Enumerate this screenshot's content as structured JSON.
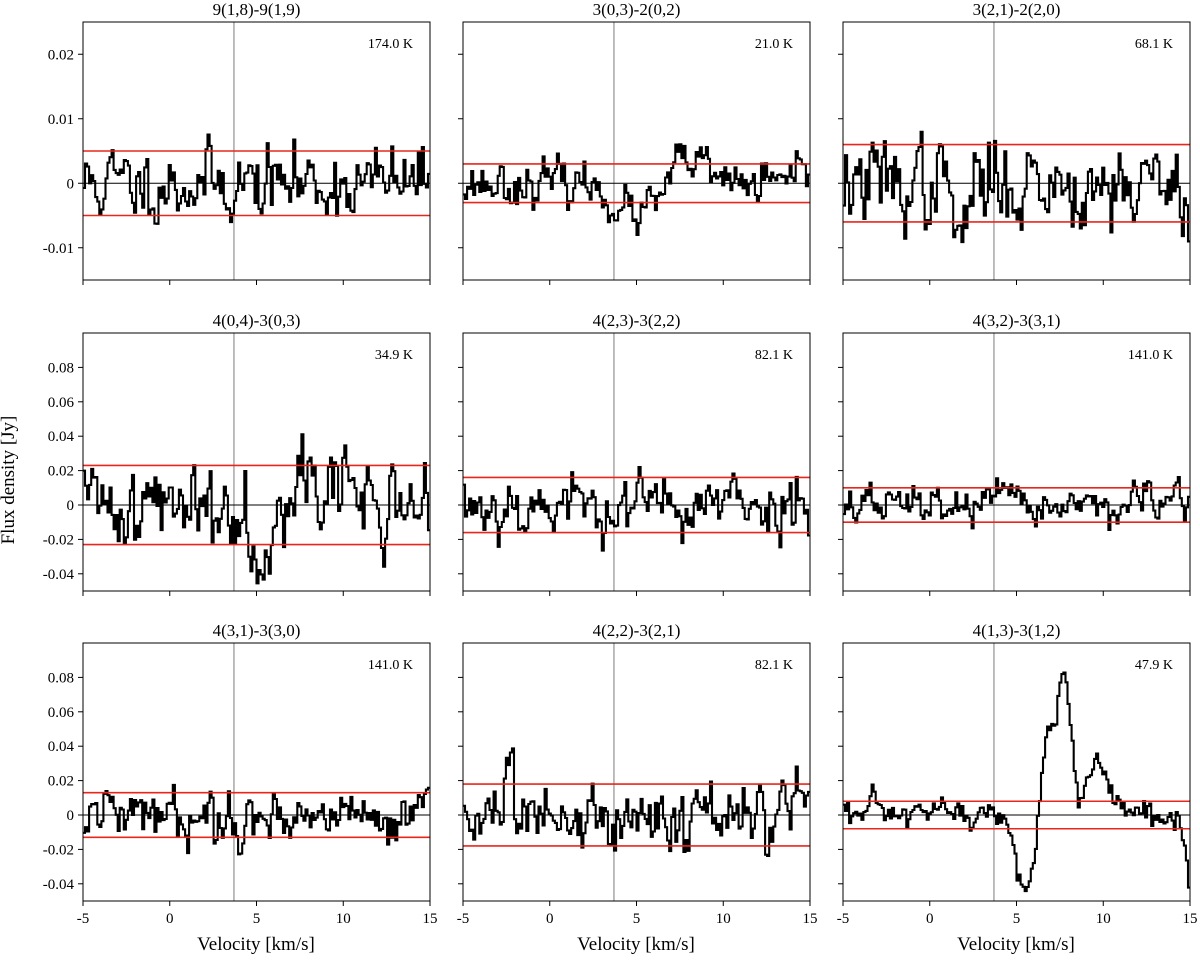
{
  "figure": {
    "ylabel": "Flux density [Jy]",
    "xlabel": "Velocity [km/s]"
  },
  "chart_data": [
    {
      "type": "line",
      "title": "9(1,8)-9(1,9)",
      "annotation": "174.0 K",
      "xlim": [
        -5,
        15
      ],
      "ylim": [
        -0.015,
        0.025
      ],
      "x_ticks": [
        -5,
        0,
        5,
        10,
        15
      ],
      "y_ticks": [
        -0.01,
        0,
        0.01,
        0.02
      ],
      "y_tick_labels": [
        "-0.01",
        "0",
        "0.01",
        "0.02"
      ],
      "noise_level": 0.005,
      "vertical_marker": 3.7,
      "seed": 11,
      "features": []
    },
    {
      "type": "line",
      "title": "3(0,3)-2(0,2)",
      "annotation": "21.0 K",
      "xlim": [
        -5,
        15
      ],
      "ylim": [
        -0.015,
        0.025
      ],
      "x_ticks": [
        -5,
        0,
        5,
        10,
        15
      ],
      "y_ticks": [
        -0.01,
        0,
        0.01,
        0.02
      ],
      "y_tick_labels": [
        "-0.01",
        "0",
        "0.01",
        "0.02"
      ],
      "noise_level": 0.003,
      "vertical_marker": 3.7,
      "seed": 23,
      "features": [
        {
          "center": 5.0,
          "width": 1.2,
          "amp": -0.005
        },
        {
          "center": 8.0,
          "width": 0.8,
          "amp": 0.004
        }
      ]
    },
    {
      "type": "line",
      "title": "3(2,1)-2(2,0)",
      "annotation": "68.1 K",
      "xlim": [
        -5,
        15
      ],
      "ylim": [
        -0.015,
        0.025
      ],
      "x_ticks": [
        -5,
        0,
        5,
        10,
        15
      ],
      "y_ticks": [
        -0.01,
        0,
        0.01,
        0.02
      ],
      "y_tick_labels": [
        "-0.01",
        "0",
        "0.01",
        "0.02"
      ],
      "noise_level": 0.006,
      "vertical_marker": 3.7,
      "seed": 37,
      "features": [
        {
          "center": 1.8,
          "width": 0.4,
          "amp": -0.008
        }
      ]
    },
    {
      "type": "line",
      "title": "4(0,4)-3(0,3)",
      "annotation": "34.9 K",
      "xlim": [
        -5,
        15
      ],
      "ylim": [
        -0.05,
        0.1
      ],
      "x_ticks": [
        -5,
        0,
        5,
        10,
        15
      ],
      "y_ticks": [
        -0.04,
        -0.02,
        0,
        0.02,
        0.04,
        0.06,
        0.08
      ],
      "y_tick_labels": [
        "-0.04",
        "-0.02",
        "0",
        "0.02",
        "0.04",
        "0.06",
        "0.08"
      ],
      "noise_level": 0.023,
      "vertical_marker": 3.7,
      "seed": 41,
      "features": [
        {
          "center": 5.2,
          "width": 0.6,
          "amp": -0.025
        },
        {
          "center": 8.0,
          "width": 1.5,
          "amp": 0.018
        }
      ]
    },
    {
      "type": "line",
      "title": "4(2,3)-3(2,2)",
      "annotation": "82.1 K",
      "xlim": [
        -5,
        15
      ],
      "ylim": [
        -0.05,
        0.1
      ],
      "x_ticks": [
        -5,
        0,
        5,
        10,
        15
      ],
      "y_ticks": [
        -0.04,
        -0.02,
        0,
        0.02,
        0.04,
        0.06,
        0.08
      ],
      "y_tick_labels": [
        "-0.04",
        "-0.02",
        "0",
        "0.02",
        "0.04",
        "0.06",
        "0.08"
      ],
      "noise_level": 0.016,
      "vertical_marker": 3.7,
      "seed": 53,
      "features": []
    },
    {
      "type": "line",
      "title": "4(3,2)-3(3,1)",
      "annotation": "141.0 K",
      "xlim": [
        -5,
        15
      ],
      "ylim": [
        -0.05,
        0.1
      ],
      "x_ticks": [
        -5,
        0,
        5,
        10,
        15
      ],
      "y_ticks": [
        -0.04,
        -0.02,
        0,
        0.02,
        0.04,
        0.06,
        0.08
      ],
      "y_tick_labels": [
        "-0.04",
        "-0.02",
        "0",
        "0.02",
        "0.04",
        "0.06",
        "0.08"
      ],
      "noise_level": 0.01,
      "vertical_marker": 3.7,
      "seed": 67,
      "features": []
    },
    {
      "type": "line",
      "title": "4(3,1)-3(3,0)",
      "annotation": "141.0 K",
      "xlim": [
        -5,
        15
      ],
      "ylim": [
        -0.05,
        0.1
      ],
      "x_ticks": [
        -5,
        0,
        5,
        10,
        15
      ],
      "y_ticks": [
        -0.04,
        -0.02,
        0,
        0.02,
        0.04,
        0.06,
        0.08
      ],
      "y_tick_labels": [
        "-0.04",
        "-0.02",
        "0",
        "0.02",
        "0.04",
        "0.06",
        "0.08"
      ],
      "noise_level": 0.013,
      "vertical_marker": 3.7,
      "seed": 79,
      "features": []
    },
    {
      "type": "line",
      "title": "4(2,2)-3(2,1)",
      "annotation": "82.1 K",
      "xlim": [
        -5,
        15
      ],
      "ylim": [
        -0.05,
        0.1
      ],
      "x_ticks": [
        -5,
        0,
        5,
        10,
        15
      ],
      "y_ticks": [
        -0.04,
        -0.02,
        0,
        0.02,
        0.04,
        0.06,
        0.08
      ],
      "y_tick_labels": [
        "-0.04",
        "-0.02",
        "0",
        "0.02",
        "0.04",
        "0.06",
        "0.08"
      ],
      "noise_level": 0.018,
      "vertical_marker": 3.7,
      "seed": 83,
      "features": []
    },
    {
      "type": "line",
      "title": "4(1,3)-3(1,2)",
      "annotation": "47.9 K",
      "xlim": [
        -5,
        15
      ],
      "ylim": [
        -0.05,
        0.1
      ],
      "x_ticks": [
        -5,
        0,
        5,
        10,
        15
      ],
      "y_ticks": [
        -0.04,
        -0.02,
        0,
        0.02,
        0.04,
        0.06,
        0.08
      ],
      "y_tick_labels": [
        "-0.04",
        "-0.02",
        "0",
        "0.02",
        "0.04",
        "0.06",
        "0.08"
      ],
      "noise_level": 0.008,
      "vertical_marker": 3.7,
      "seed": 97,
      "features": [
        {
          "center": 5.5,
          "width": 0.5,
          "amp": -0.045
        },
        {
          "center": 6.8,
          "width": 0.35,
          "amp": 0.045
        },
        {
          "center": 7.7,
          "width": 0.35,
          "amp": 0.075
        },
        {
          "center": 9.6,
          "width": 0.9,
          "amp": 0.025
        },
        {
          "center": 15.0,
          "width": 0.25,
          "amp": -0.035
        }
      ]
    }
  ]
}
